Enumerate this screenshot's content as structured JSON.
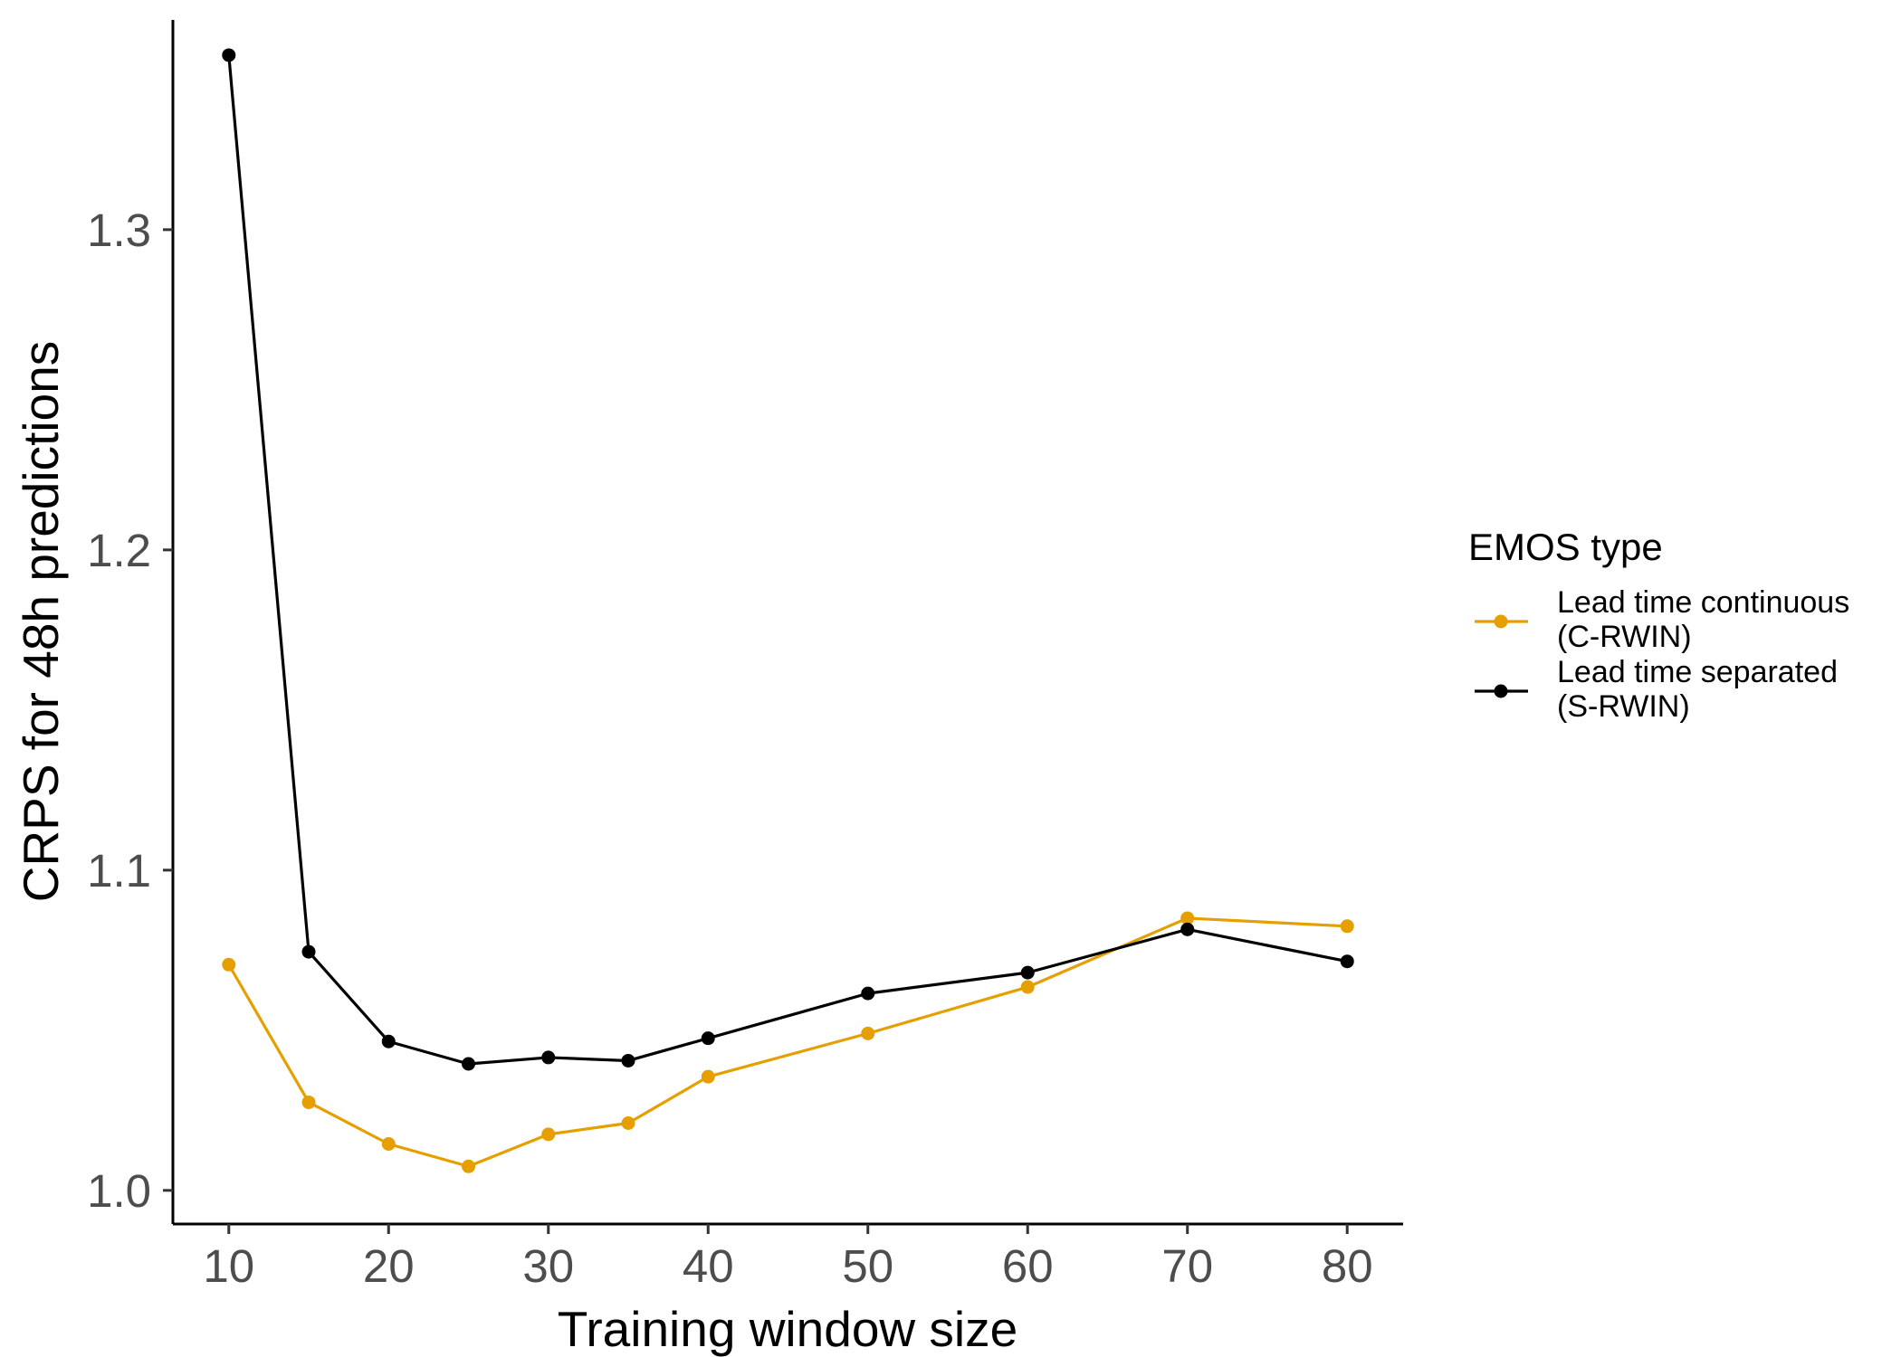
{
  "chart_data": {
    "type": "line",
    "xlabel": "Training window size",
    "ylabel": "CRPS for 48h predictions",
    "xlim": [
      6.5,
      83.5
    ],
    "ylim": [
      0.9895,
      1.3655
    ],
    "x_ticks": [
      10,
      20,
      30,
      40,
      50,
      60,
      70,
      80
    ],
    "x_tick_labels": [
      "10",
      "20",
      "30",
      "40",
      "50",
      "60",
      "70",
      "80"
    ],
    "y_ticks": [
      1.0,
      1.1,
      1.2,
      1.3
    ],
    "y_tick_labels": [
      "1.0",
      "1.1",
      "1.2",
      "1.3"
    ],
    "grid": false,
    "legend_position": "right",
    "legend": {
      "title": "EMOS type"
    },
    "series": [
      {
        "name": "Lead time continuous (C-RWIN)",
        "label_lines": [
          "Lead time continuous",
          "(C-RWIN)"
        ],
        "color": "#E69F00",
        "x": [
          10,
          15,
          20,
          25,
          30,
          35,
          40,
          50,
          60,
          70,
          80
        ],
        "values": [
          1.0705,
          1.0275,
          1.0145,
          1.0075,
          1.0175,
          1.021,
          1.0355,
          1.049,
          1.0635,
          1.085,
          1.0825
        ]
      },
      {
        "name": "Lead time separated (S-RWIN)",
        "label_lines": [
          "Lead time separated",
          "(S-RWIN)"
        ],
        "color": "#000000",
        "x": [
          10,
          15,
          20,
          25,
          30,
          35,
          40,
          50,
          60,
          70,
          80
        ],
        "values": [
          1.3545,
          1.0745,
          1.0465,
          1.0395,
          1.0415,
          1.0405,
          1.0475,
          1.0615,
          1.068,
          1.0815,
          1.0715
        ]
      }
    ]
  }
}
